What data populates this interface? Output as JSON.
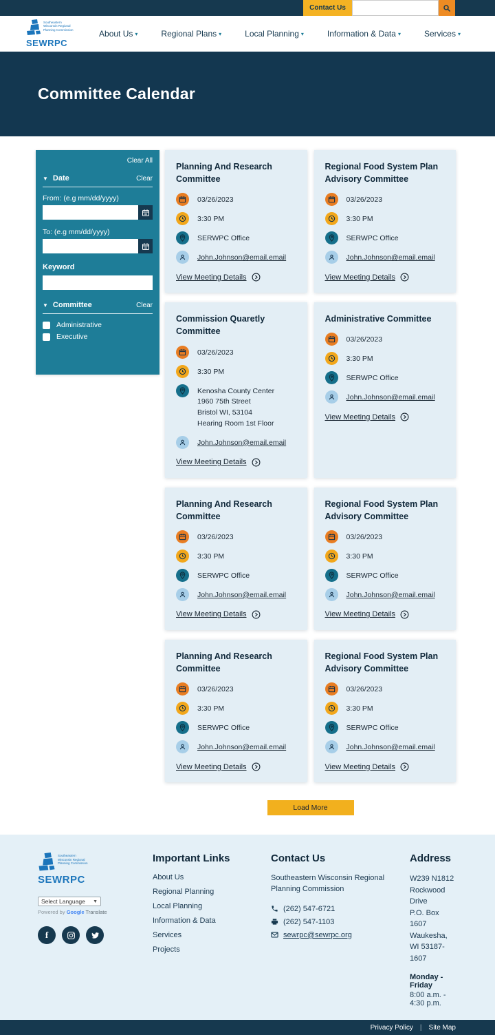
{
  "topbar": {
    "contact_label": "Contact Us",
    "search_value": ""
  },
  "logo": {
    "lines": "Southeastern Wisconsin Regional Planning Commission",
    "acronym": "SEWRPC"
  },
  "nav": {
    "items": [
      "About Us",
      "Regional Plans",
      "Local Planning",
      "Information & Data",
      "Services"
    ]
  },
  "hero": {
    "title": "Committee Calendar"
  },
  "filters": {
    "clear_all": "Clear All",
    "date": {
      "title": "Date",
      "clear": "Clear",
      "from_label": "From: (e.g mm/dd/yyyy)",
      "to_label": "To: (e.g mm/dd/yyyy)",
      "from_value": "",
      "to_value": ""
    },
    "keyword": {
      "label": "Keyword",
      "value": ""
    },
    "committee": {
      "title": "Committee",
      "clear": "Clear",
      "options": [
        "Administrative",
        "Executive"
      ]
    }
  },
  "cards": [
    {
      "title": "Planning And Research Committee",
      "date": "03/26/2023",
      "time": "3:30 PM",
      "location": [
        "SERWPC Office"
      ],
      "email": "John.Johnson@email.email",
      "details_label": "View Meeting Details"
    },
    {
      "title": "Regional Food System Plan Advisory Committee",
      "date": "03/26/2023",
      "time": "3:30 PM",
      "location": [
        "SERWPC Office"
      ],
      "email": "John.Johnson@email.email",
      "details_label": "View Meeting Details"
    },
    {
      "title": "Commission Quaretly Committee",
      "date": "03/26/2023",
      "time": "3:30 PM",
      "location": [
        "Kenosha County Center",
        "1960 75th Street",
        "Bristol WI, 53104",
        "Hearing Room 1st Floor"
      ],
      "email": "John.Johnson@email.email",
      "details_label": "View Meeting Details"
    },
    {
      "title": "Administrative Committee",
      "date": "03/26/2023",
      "time": "3:30 PM",
      "location": [
        "SERWPC Office"
      ],
      "email": "John.Johnson@email.email",
      "details_label": "View Meeting Details"
    },
    {
      "title": "Planning And Research Committee",
      "date": "03/26/2023",
      "time": "3:30 PM",
      "location": [
        "SERWPC Office"
      ],
      "email": "John.Johnson@email.email",
      "details_label": "View Meeting Details"
    },
    {
      "title": "Regional Food System Plan Advisory Committee",
      "date": "03/26/2023",
      "time": "3:30 PM",
      "location": [
        "SERWPC Office"
      ],
      "email": "John.Johnson@email.email",
      "details_label": "View Meeting Details"
    },
    {
      "title": "Planning And Research Committee",
      "date": "03/26/2023",
      "time": "3:30 PM",
      "location": [
        "SERWPC Office"
      ],
      "email": "John.Johnson@email.email",
      "details_label": "View Meeting Details"
    },
    {
      "title": "Regional Food System Plan Advisory Committee",
      "date": "03/26/2023",
      "time": "3:30 PM",
      "location": [
        "SERWPC Office"
      ],
      "email": "John.Johnson@email.email",
      "details_label": "View Meeting Details"
    }
  ],
  "load_more_label": "Load More",
  "footer": {
    "language": {
      "select_label": "Select Language",
      "powered_by": "Powered by",
      "google": "Google",
      "translate": "Translate"
    },
    "important_links": {
      "heading": "Important Links",
      "items": [
        "About Us",
        "Regional Planning",
        "Local Planning",
        "Information & Data",
        "Services",
        "Projects"
      ]
    },
    "contact": {
      "heading": "Contact Us",
      "org": "Southeastern Wisconsin Regional Planning Commission",
      "phone": "(262) 547-6721",
      "fax": "(262) 547-1103",
      "email": "sewrpc@sewrpc.org"
    },
    "address": {
      "heading": "Address",
      "lines_1": "W239 N1812 Rockwood Drive",
      "lines_2": "P.O. Box 1607",
      "lines_3": "Waukesha, WI 53187-1607",
      "schedule_title": "Monday - Friday",
      "schedule_hours": "8:00 a.m. - 4:30 p.m."
    }
  },
  "bottom": {
    "privacy": "Privacy Policy",
    "sitemap": "Site Map"
  },
  "colors": {
    "navy": "#16394f",
    "teal": "#1e7d98",
    "yellow": "#f4b223",
    "orange": "#ee8b23",
    "card_bg": "#e3eef5"
  }
}
